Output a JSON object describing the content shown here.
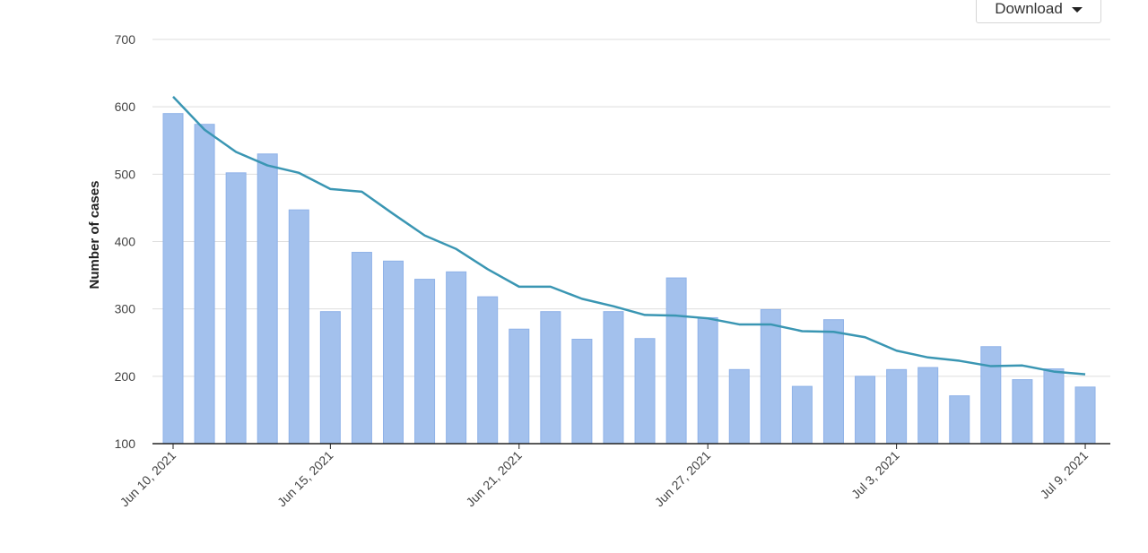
{
  "toolbar": {
    "download_label": "Download"
  },
  "colors": {
    "bar": "#a3c1ed",
    "bar_edge": "#8fb2e8",
    "line": "#3a96b3",
    "grid": "#dedede",
    "axis": "#222222"
  },
  "chart_data": {
    "type": "bar",
    "ylabel": "Number of cases",
    "ylim": [
      100,
      700
    ],
    "yticks": [
      100,
      200,
      300,
      400,
      500,
      600,
      700
    ],
    "grid": true,
    "x": [
      "2021-06-10",
      "2021-06-11",
      "2021-06-12",
      "2021-06-13",
      "2021-06-14",
      "2021-06-15",
      "2021-06-16",
      "2021-06-17",
      "2021-06-18",
      "2021-06-19",
      "2021-06-20",
      "2021-06-21",
      "2021-06-22",
      "2021-06-23",
      "2021-06-24",
      "2021-06-25",
      "2021-06-26",
      "2021-06-27",
      "2021-06-28",
      "2021-06-29",
      "2021-06-30",
      "2021-07-01",
      "2021-07-02",
      "2021-07-03",
      "2021-07-04",
      "2021-07-05",
      "2021-07-06",
      "2021-07-07",
      "2021-07-08",
      "2021-07-09"
    ],
    "xtick_labels": [
      {
        "date": "2021-06-10",
        "label": "Jun 10, 2021"
      },
      {
        "date": "2021-06-15",
        "label": "Jun 15, 2021"
      },
      {
        "date": "2021-06-21",
        "label": "Jun 21, 2021"
      },
      {
        "date": "2021-06-27",
        "label": "Jun 27, 2021"
      },
      {
        "date": "2021-07-03",
        "label": "Jul 3, 2021"
      },
      {
        "date": "2021-07-09",
        "label": "Jul 9, 2021"
      }
    ],
    "series": [
      {
        "type": "bar",
        "values": [
          590,
          574,
          502,
          530,
          447,
          296,
          384,
          371,
          344,
          355,
          318,
          270,
          296,
          255,
          296,
          256,
          346,
          287,
          210,
          299,
          185,
          284,
          200,
          210,
          213,
          171,
          244,
          195,
          211,
          184
        ]
      },
      {
        "type": "line",
        "values": [
          615,
          566,
          533,
          513,
          502,
          478,
          474,
          441,
          409,
          389,
          359,
          333,
          333,
          315,
          304,
          291,
          290,
          286,
          277,
          277,
          267,
          266,
          258,
          238,
          228,
          223,
          215,
          216,
          207,
          203
        ]
      }
    ]
  }
}
